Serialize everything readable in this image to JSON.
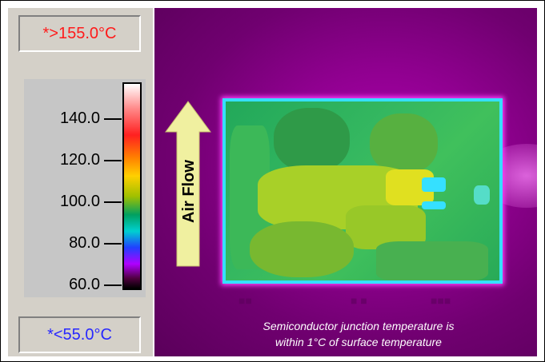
{
  "scale": {
    "max_label": "*>155.0°C",
    "min_label": "*<55.0°C",
    "ticks": [
      "140.0",
      "120.0",
      "100.0",
      "80.0",
      "60.0"
    ],
    "colors": {
      "max_text": "#ff1a1a",
      "min_text": "#2727ff",
      "panel": "#d4d0c8"
    }
  },
  "thermal_image": {
    "arrow_label": "Air Flow",
    "caption_line1": "Semiconductor junction temperature is",
    "caption_line2": "within 1°C of surface temperature",
    "colors": {
      "background": "#900090",
      "board_edge": "#35e0ff",
      "arrow_fill": "#f0f0a0"
    }
  }
}
